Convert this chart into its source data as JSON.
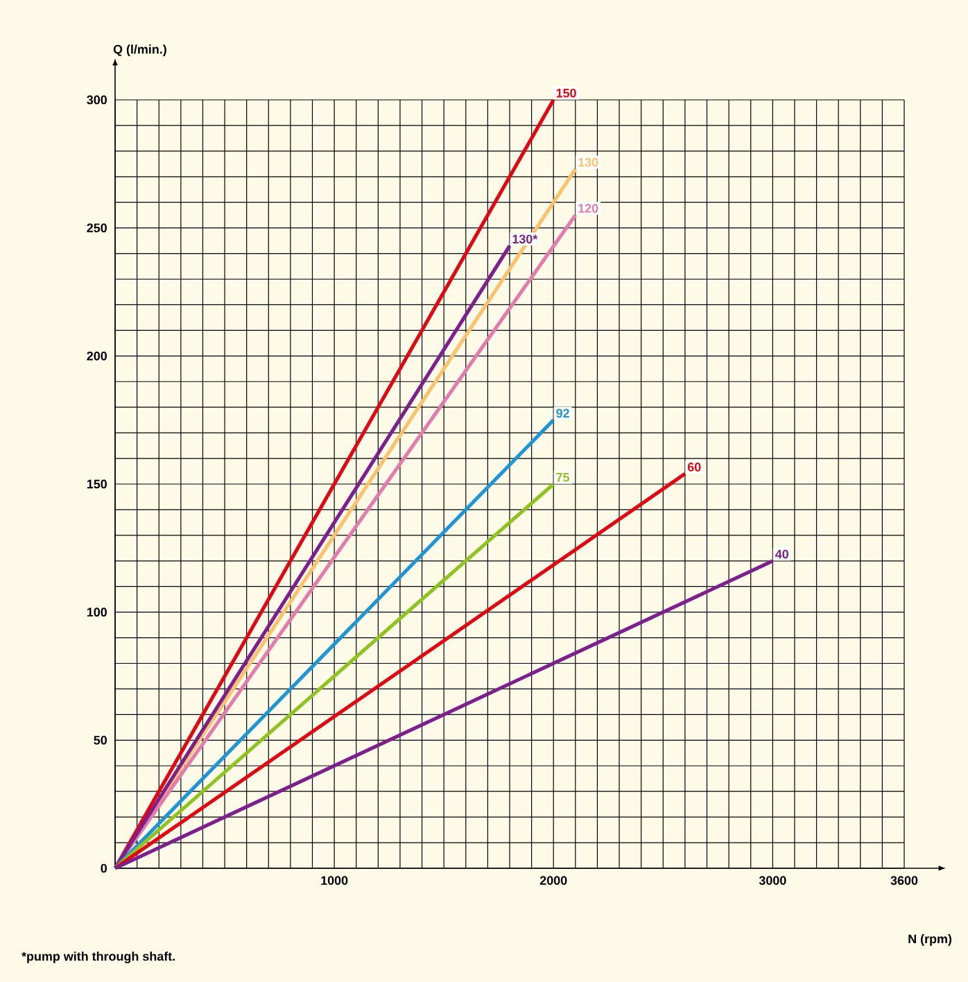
{
  "chart_data": {
    "type": "line",
    "xlabel": "N (rpm)",
    "ylabel": "Q (l/min.)",
    "xlim": [
      0,
      3600
    ],
    "ylim": [
      0,
      300
    ],
    "xticks": [
      1000,
      2000,
      3000,
      3600
    ],
    "yticks": [
      0,
      50,
      100,
      150,
      200,
      250,
      300
    ],
    "grid": true,
    "legend": false,
    "marker": "none",
    "line_style": "solid",
    "series": [
      {
        "name": "150",
        "color": "#e30613",
        "x": [
          0,
          2000
        ],
        "values": [
          0,
          300
        ]
      },
      {
        "name": "130",
        "color": "#fbc16b",
        "x": [
          0,
          2100
        ],
        "values": [
          0,
          273
        ]
      },
      {
        "name": "120",
        "color": "#e37bab",
        "x": [
          0,
          2100
        ],
        "values": [
          0,
          255
        ]
      },
      {
        "name": "130*",
        "color": "#7d1f8c",
        "x": [
          0,
          1800
        ],
        "values": [
          0,
          243
        ]
      },
      {
        "name": "92",
        "color": "#1e95d4",
        "x": [
          0,
          2000
        ],
        "values": [
          0,
          175
        ]
      },
      {
        "name": "75",
        "color": "#8fc31f",
        "x": [
          0,
          2000
        ],
        "values": [
          0,
          150
        ]
      },
      {
        "name": "60",
        "color": "#e30613",
        "x": [
          0,
          2600
        ],
        "values": [
          0,
          154
        ]
      },
      {
        "name": "40",
        "color": "#7d1f8c",
        "x": [
          0,
          3000
        ],
        "values": [
          0,
          120
        ]
      }
    ],
    "annotations": [
      "*pump with through shaft."
    ]
  }
}
